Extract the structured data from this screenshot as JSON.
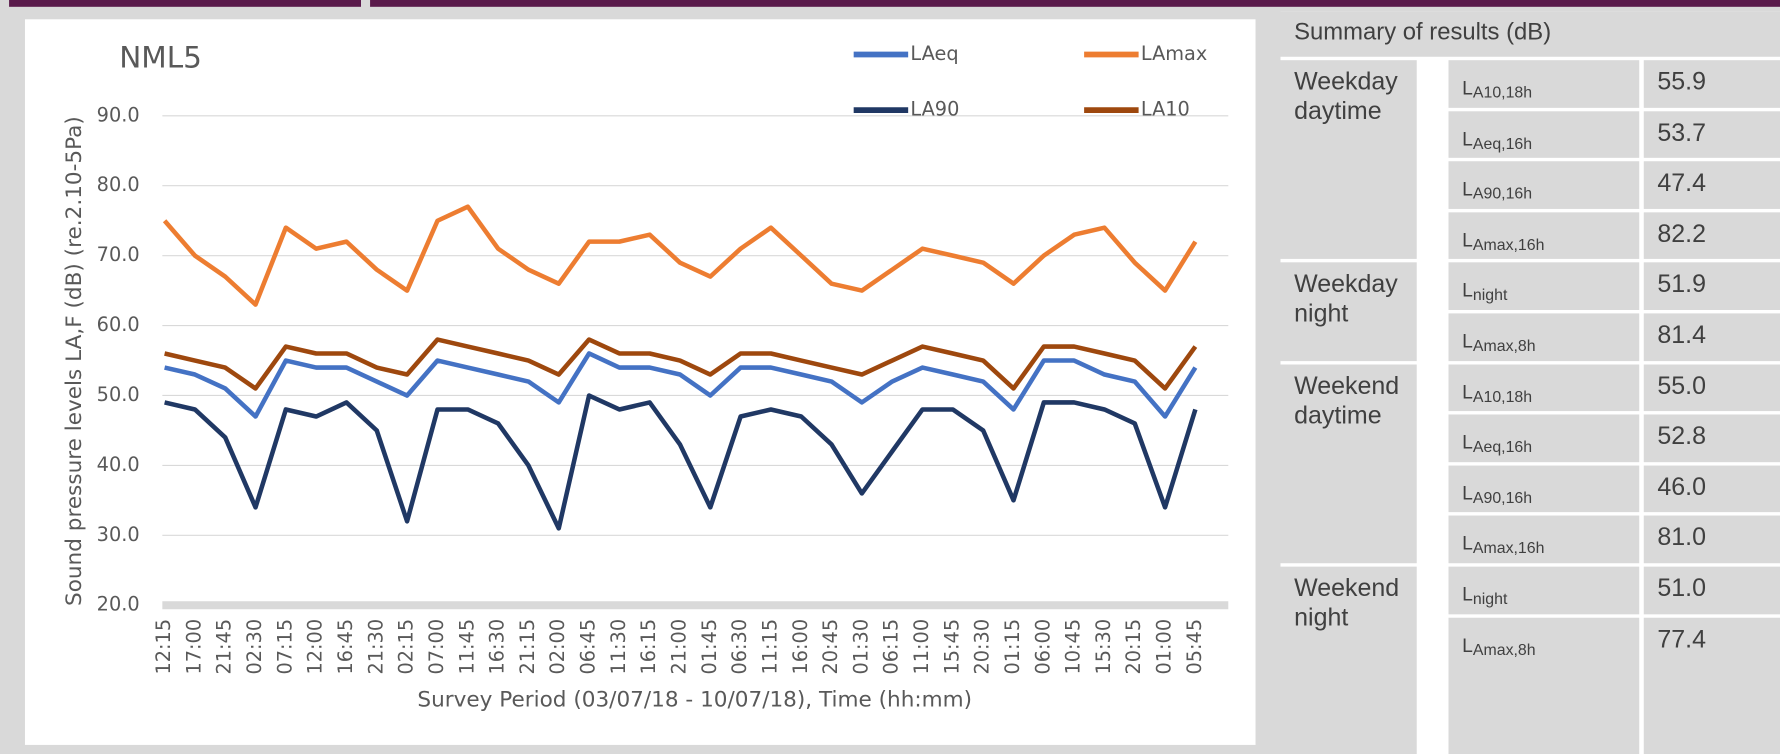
{
  "chart_data": {
    "type": "line",
    "title": "NML5",
    "y_label": "Sound pressure levels  LA,F (dB) (re.2.10-5Pa)",
    "x_label": "Survey Period (03/07/18 -  10/07/18), Time (hh:mm)",
    "categories": [
      "12:15",
      "17:00",
      "21:45",
      "02:30",
      "07:15",
      "12:00",
      "16:45",
      "21:30",
      "02:15",
      "07:00",
      "11:45",
      "16:30",
      "21:15",
      "02:00",
      "06:45",
      "11:30",
      "16:15",
      "21:00",
      "01:45",
      "06:30",
      "11:15",
      "16:00",
      "20:45",
      "01:30",
      "06:15",
      "11:00",
      "15:45",
      "20:30",
      "01:15",
      "06:00",
      "10:45",
      "15:30",
      "20:15",
      "01:00",
      "05:45"
    ],
    "series": [
      {
        "name": "LAeq",
        "color": "#4472c4",
        "values": [
          54,
          53,
          51,
          47,
          55,
          54,
          54,
          52,
          50,
          55,
          54,
          53,
          52,
          49,
          56,
          54,
          54,
          53,
          50,
          54,
          54,
          53,
          52,
          49,
          52,
          54,
          53,
          52,
          48,
          55,
          55,
          53,
          52,
          47,
          54
        ]
      },
      {
        "name": "LAmax",
        "color": "#ed7d31",
        "values": [
          75,
          70,
          67,
          63,
          74,
          71,
          72,
          68,
          65,
          75,
          77,
          71,
          68,
          66,
          72,
          72,
          73,
          69,
          67,
          71,
          74,
          70,
          66,
          65,
          68,
          71,
          70,
          69,
          66,
          70,
          73,
          74,
          69,
          65,
          72
        ]
      },
      {
        "name": "LA90",
        "color": "#203864",
        "values": [
          49,
          48,
          44,
          34,
          48,
          47,
          49,
          45,
          32,
          48,
          48,
          46,
          40,
          31,
          50,
          48,
          49,
          43,
          34,
          47,
          48,
          47,
          43,
          36,
          42,
          48,
          48,
          45,
          35,
          49,
          49,
          48,
          46,
          34,
          48
        ]
      },
      {
        "name": "LA10",
        "color": "#9e480e",
        "values": [
          56,
          55,
          54,
          51,
          57,
          56,
          56,
          54,
          53,
          58,
          57,
          56,
          55,
          53,
          58,
          56,
          56,
          55,
          53,
          56,
          56,
          55,
          54,
          53,
          55,
          57,
          56,
          55,
          51,
          57,
          57,
          56,
          55,
          51,
          57
        ]
      }
    ],
    "ylim": [
      20,
      90
    ],
    "yticks": [
      {
        "value": 20,
        "label": "20.0"
      },
      {
        "value": 30,
        "label": "30.0"
      },
      {
        "value": 40,
        "label": "40.0"
      },
      {
        "value": 50,
        "label": "50.0"
      },
      {
        "value": 60,
        "label": "60.0"
      },
      {
        "value": 70,
        "label": "70.0"
      },
      {
        "value": 80,
        "label": "80.0"
      },
      {
        "value": 90,
        "label": "90.0"
      }
    ],
    "grid": true,
    "legend": "top-right"
  },
  "table": {
    "title": "Summary of results (dB)",
    "groups": [
      {
        "label": "Weekday daytime",
        "rows": [
          {
            "symbol": "L",
            "sub": "A10,18h",
            "value": "55.9"
          },
          {
            "symbol": "L",
            "sub": "Aeq,16h",
            "value": "53.7"
          },
          {
            "symbol": "L",
            "sub": "A90,16h",
            "value": "47.4"
          },
          {
            "symbol": "L",
            "sub": "Amax,16h",
            "value": "82.2"
          }
        ]
      },
      {
        "label": "Weekday night",
        "rows": [
          {
            "symbol": "L",
            "sub": "night",
            "value": "51.9"
          },
          {
            "symbol": "L",
            "sub": "Amax,8h",
            "value": "81.4"
          }
        ]
      },
      {
        "label": "Weekend daytime",
        "rows": [
          {
            "symbol": "L",
            "sub": "A10,18h",
            "value": "55.0"
          },
          {
            "symbol": "L",
            "sub": "Aeq,16h",
            "value": "52.8"
          },
          {
            "symbol": "L",
            "sub": "A90,16h",
            "value": "46.0"
          },
          {
            "symbol": "L",
            "sub": "Amax,16h",
            "value": "81.0"
          }
        ]
      },
      {
        "label": "Weekend night",
        "rows": [
          {
            "symbol": "L",
            "sub": "night",
            "value": "51.0"
          },
          {
            "symbol": "L",
            "sub": "Amax,8h",
            "value": "77.4"
          }
        ]
      }
    ]
  }
}
